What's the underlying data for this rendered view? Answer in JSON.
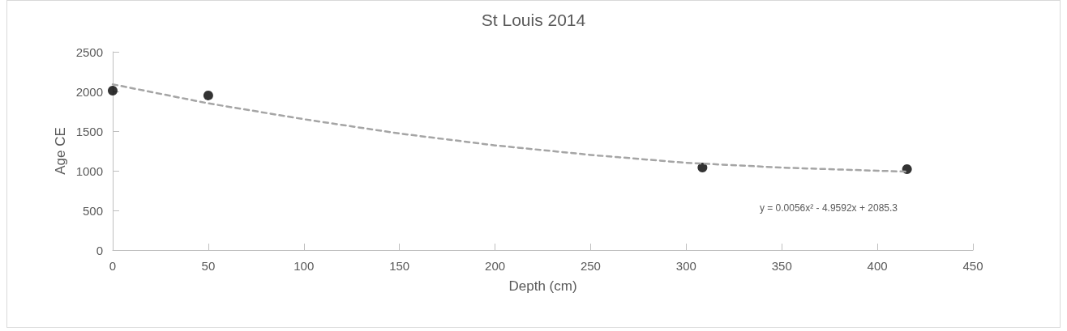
{
  "chart_data": {
    "type": "scatter",
    "title": "St Louis 2014",
    "xlabel": "Depth (cm)",
    "ylabel": "Age CE",
    "series": [
      {
        "color": "#000000",
        "marker": "circle",
        "x": [
          0,
          50,
          308.5,
          415.5
        ],
        "values": [
          2010,
          1950,
          1040,
          1020
        ]
      },
      {
        "type": "line",
        "color": "#a5a5a5",
        "marker": "none",
        "line_style": "dashed",
        "x": [
          0,
          50,
          100,
          150,
          200,
          250,
          300,
          350,
          400,
          415.5
        ],
        "values": [
          2090,
          1850,
          1650,
          1470,
          1320,
          1200,
          1100,
          1040,
          1000,
          990
        ]
      }
    ],
    "annotations": [
      "y = 0.0056x² - 4.9592x + 2085.3"
    ],
    "xlim": [
      0,
      450
    ],
    "xticks": [
      0,
      50,
      100,
      150,
      200,
      250,
      300,
      350,
      400,
      450
    ],
    "ylim": [
      0,
      2500
    ],
    "yticks": [
      0,
      500,
      1000,
      1500,
      2000,
      2500
    ],
    "grid": false
  }
}
